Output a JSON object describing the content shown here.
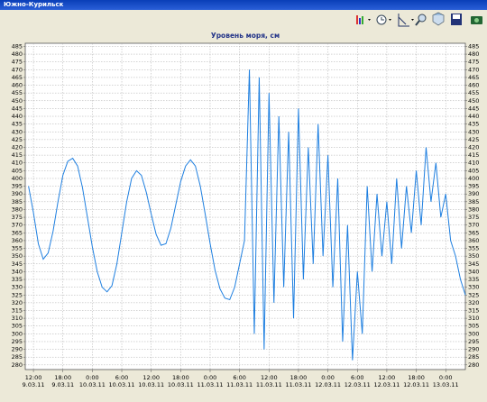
{
  "window": {
    "title": "Южно-Курильск"
  },
  "chart_data": {
    "type": "line",
    "title": "Уровень моря, см",
    "x": [
      "9.03.11 11:00",
      "9.03.11 12:00",
      "9.03.11 13:00",
      "9.03.11 14:00",
      "9.03.11 15:00",
      "9.03.11 16:00",
      "9.03.11 17:00",
      "9.03.11 18:00",
      "9.03.11 19:00",
      "9.03.11 20:00",
      "9.03.11 21:00",
      "9.03.11 22:00",
      "9.03.11 23:00",
      "10.03.11 0:00",
      "10.03.11 1:00",
      "10.03.11 2:00",
      "10.03.11 3:00",
      "10.03.11 4:00",
      "10.03.11 5:00",
      "10.03.11 6:00",
      "10.03.11 7:00",
      "10.03.11 8:00",
      "10.03.11 9:00",
      "10.03.11 10:00",
      "10.03.11 11:00",
      "10.03.11 12:00",
      "10.03.11 13:00",
      "10.03.11 14:00",
      "10.03.11 15:00",
      "10.03.11 16:00",
      "10.03.11 17:00",
      "10.03.11 18:00",
      "10.03.11 19:00",
      "10.03.11 20:00",
      "10.03.11 21:00",
      "10.03.11 22:00",
      "10.03.11 23:00",
      "11.03.11 0:00",
      "11.03.11 1:00",
      "11.03.11 2:00",
      "11.03.11 3:00",
      "11.03.11 4:00",
      "11.03.11 5:00",
      "11.03.11 6:00",
      "11.03.11 7:00",
      "11.03.11 8:00",
      "11.03.11 9:00",
      "11.03.11 10:00",
      "11.03.11 11:00",
      "11.03.11 12:00",
      "11.03.11 13:00",
      "11.03.11 14:00",
      "11.03.11 15:00",
      "11.03.11 16:00",
      "11.03.11 17:00",
      "11.03.11 18:00",
      "11.03.11 19:00",
      "11.03.11 20:00",
      "11.03.11 21:00",
      "11.03.11 22:00",
      "11.03.11 23:00",
      "12.03.11 0:00",
      "12.03.11 1:00",
      "12.03.11 2:00",
      "12.03.11 3:00",
      "12.03.11 4:00",
      "12.03.11 5:00",
      "12.03.11 6:00",
      "12.03.11 7:00",
      "12.03.11 8:00",
      "12.03.11 9:00",
      "12.03.11 10:00",
      "12.03.11 11:00",
      "12.03.11 12:00",
      "12.03.11 13:00",
      "12.03.11 14:00",
      "12.03.11 15:00",
      "12.03.11 16:00",
      "12.03.11 17:00",
      "12.03.11 18:00",
      "12.03.11 19:00",
      "12.03.11 20:00",
      "12.03.11 21:00",
      "12.03.11 22:00",
      "12.03.11 23:00",
      "13.03.11 0:00",
      "13.03.11 1:00",
      "13.03.11 2:00",
      "13.03.11 3:00",
      "13.03.11 4:00"
    ],
    "series": [
      {
        "color": "#1e7fe0",
        "values": [
          395,
          378,
          358,
          348,
          352,
          366,
          385,
          402,
          411,
          413,
          408,
          394,
          375,
          356,
          340,
          330,
          327,
          331,
          345,
          365,
          385,
          400,
          405,
          402,
          391,
          377,
          364,
          357,
          358,
          368,
          383,
          398,
          408,
          412,
          408,
          395,
          377,
          358,
          341,
          329,
          323,
          322,
          330,
          345,
          360,
          470,
          300,
          465,
          290,
          455,
          320,
          440,
          330,
          430,
          310,
          445,
          335,
          420,
          345,
          435,
          350,
          415,
          330,
          400,
          295,
          370,
          283,
          340,
          300,
          395,
          340,
          390,
          350,
          385,
          345,
          400,
          355,
          395,
          365,
          405,
          370,
          420,
          385,
          410,
          375,
          390,
          360,
          350,
          335,
          325
        ]
      }
    ],
    "xlim": [
      "9.03.11 10:20",
      "13.03.11 4:00"
    ],
    "xticks": [
      {
        "value": "9.03.11 12:00",
        "label": [
          "12:00",
          "9.03.11"
        ]
      },
      {
        "value": "9.03.11 18:00",
        "label": [
          "18:00",
          "9.03.11"
        ]
      },
      {
        "value": "10.03.11 0:00",
        "label": [
          "0:00",
          "10.03.11"
        ]
      },
      {
        "value": "10.03.11 6:00",
        "label": [
          "6:00",
          "10.03.11"
        ]
      },
      {
        "value": "10.03.11 12:00",
        "label": [
          "12:00",
          "10.03.11"
        ]
      },
      {
        "value": "10.03.11 18:00",
        "label": [
          "18:00",
          "10.03.11"
        ]
      },
      {
        "value": "11.03.11 0:00",
        "label": [
          "0:00",
          "11.03.11"
        ]
      },
      {
        "value": "11.03.11 6:00",
        "label": [
          "6:00",
          "11.03.11"
        ]
      },
      {
        "value": "11.03.11 12:00",
        "label": [
          "12:00",
          "11.03.11"
        ]
      },
      {
        "value": "11.03.11 18:00",
        "label": [
          "18:00",
          "11.03.11"
        ]
      },
      {
        "value": "12.03.11 0:00",
        "label": [
          "0:00",
          "12.03.11"
        ]
      },
      {
        "value": "12.03.11 6:00",
        "label": [
          "6:00",
          "12.03.11"
        ]
      },
      {
        "value": "12.03.11 12:00",
        "label": [
          "12:00",
          "12.03.11"
        ]
      },
      {
        "value": "12.03.11 18:00",
        "label": [
          "18:00",
          "12.03.11"
        ]
      },
      {
        "value": "13.03.11 0:00",
        "label": [
          "0:00",
          "13.03.11"
        ]
      }
    ],
    "ylim": [
      277,
      487
    ],
    "yticks": [
      280,
      285,
      290,
      295,
      300,
      305,
      310,
      315,
      320,
      325,
      330,
      335,
      340,
      345,
      350,
      355,
      360,
      365,
      370,
      375,
      380,
      385,
      390,
      395,
      400,
      405,
      410,
      415,
      420,
      425,
      430,
      435,
      440,
      445,
      450,
      455,
      460,
      465,
      470,
      475,
      480,
      485
    ],
    "grid": true
  }
}
